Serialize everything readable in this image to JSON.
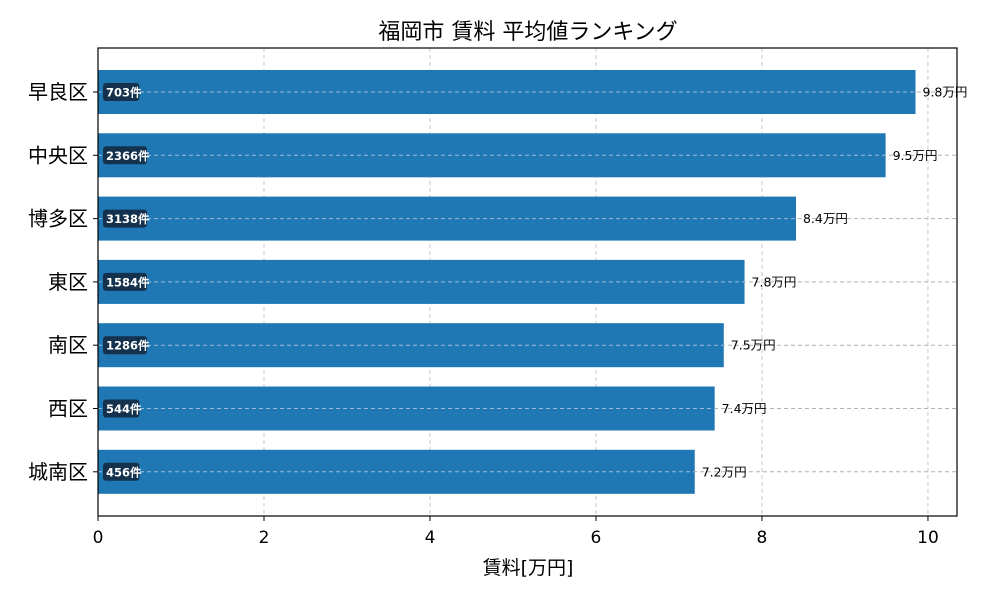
{
  "chart_data": {
    "type": "bar",
    "orientation": "horizontal",
    "title": "福岡市 賃料 平均値ランキング",
    "xlabel": "賃料[万円]",
    "ylabel": "",
    "xlim": [
      0,
      10.35
    ],
    "xticks": [
      0,
      2,
      4,
      6,
      8,
      10
    ],
    "grid": true,
    "bar_color": "#1f77b4",
    "categories": [
      "早良区",
      "中央区",
      "博多区",
      "東区",
      "南区",
      "西区",
      "城南区"
    ],
    "values": [
      9.85,
      9.49,
      8.41,
      7.79,
      7.54,
      7.43,
      7.19
    ],
    "value_labels": [
      "9.8万円",
      "9.5万円",
      "8.4万円",
      "7.8万円",
      "7.5万円",
      "7.4万円",
      "7.2万円"
    ],
    "count_labels": [
      "703件",
      "2366件",
      "3138件",
      "1584件",
      "1286件",
      "544件",
      "456件"
    ]
  }
}
